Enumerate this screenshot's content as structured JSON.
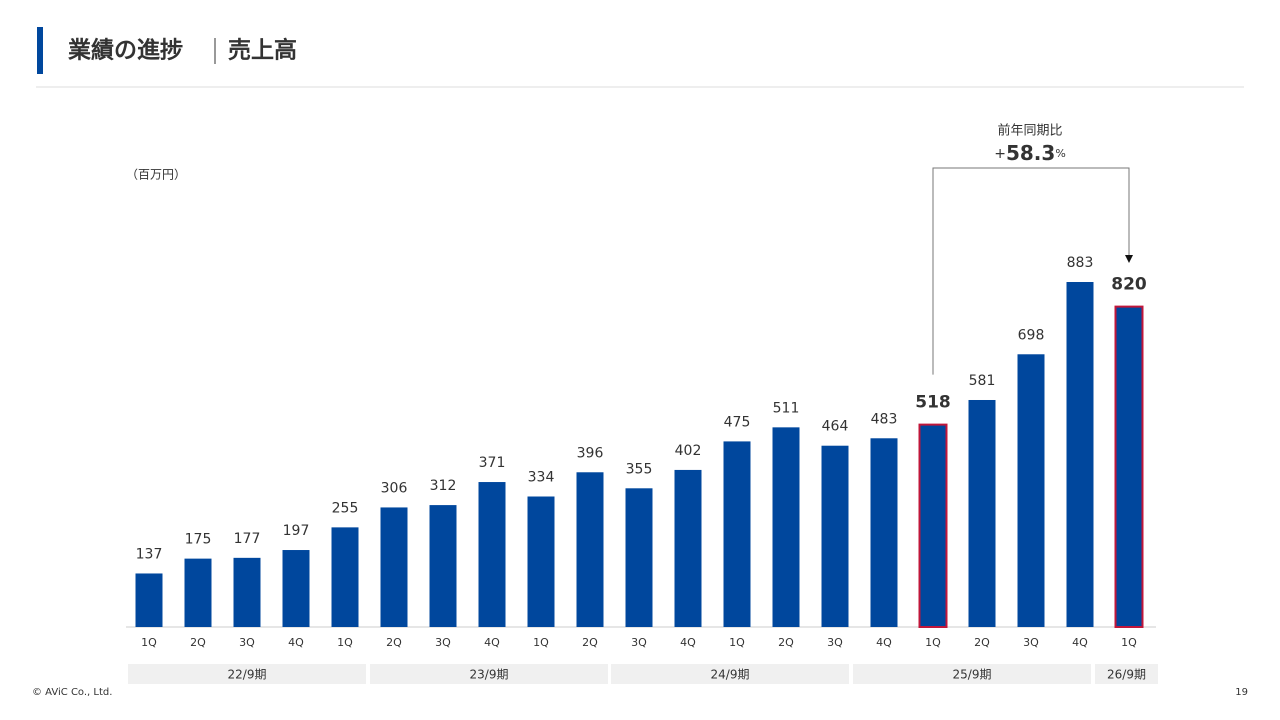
{
  "header": {
    "title": "業績の進捗",
    "subtitle": "売上高"
  },
  "chart_data": {
    "type": "bar",
    "unit": "（百万円）",
    "categories": [
      "1Q",
      "2Q",
      "3Q",
      "4Q",
      "1Q",
      "2Q",
      "3Q",
      "4Q",
      "1Q",
      "2Q",
      "3Q",
      "4Q",
      "1Q",
      "2Q",
      "3Q",
      "4Q",
      "1Q",
      "2Q",
      "3Q",
      "4Q",
      "1Q"
    ],
    "values": [
      137,
      175,
      177,
      197,
      255,
      306,
      312,
      371,
      334,
      396,
      355,
      402,
      475,
      511,
      464,
      483,
      518,
      581,
      698,
      883,
      820
    ],
    "color": "#00479d",
    "highlight": [
      16,
      20
    ],
    "highlight_color": "#c0163a",
    "groups": [
      "22/9期",
      "23/9期",
      "24/9期",
      "25/9期",
      "26/9期"
    ],
    "comparison": {
      "label": "前年同期比",
      "prefix": "+",
      "value": "58.3",
      "suffix": "%"
    }
  },
  "footer": {
    "copyright": "© AViC Co., Ltd.",
    "page": "19"
  }
}
